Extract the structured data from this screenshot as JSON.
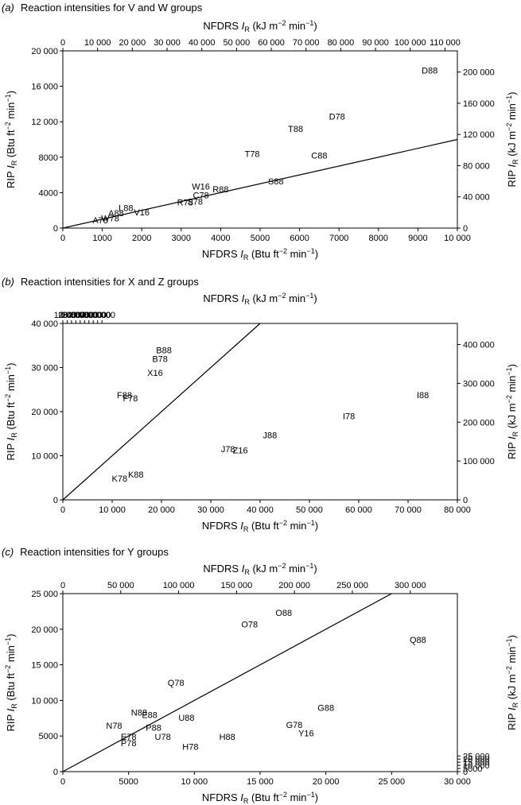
{
  "chart_data": [
    {
      "type": "scatter",
      "title_tag": "(a)",
      "title": "Reaction intensities for V and W groups",
      "xlabel_prefix": "NFDRS ",
      "xlabel_top_unit": " (kJ m−2 min−1)",
      "xlabel_bottom_unit": " (Btu ft−2 min−1)",
      "ylabel_prefix": "RIP ",
      "ylabel_left_unit": " (Btu ft−2 min−1)",
      "ylabel_right_unit": " (kJ m−2 min−1)",
      "xlim": [
        0,
        10000
      ],
      "ylim": [
        0,
        20000
      ],
      "x_ticks": [
        "0",
        "1000",
        "2000",
        "3000",
        "4000",
        "5000",
        "6000",
        "7000",
        "8000",
        "9000",
        "10 000"
      ],
      "y_ticks": [
        "0",
        "4000",
        "8000",
        "12 000",
        "16 000",
        "20 000"
      ],
      "top_ticks": [
        "0",
        "10 000",
        "20 000",
        "30 000",
        "40 000",
        "50 000",
        "60 000",
        "70 000",
        "80 000",
        "90 000",
        "100 000",
        "110 000"
      ],
      "right_ticks": [
        "0",
        "40 000",
        "80 000",
        "120 000",
        "160 000",
        "200 000"
      ],
      "line": [
        [
          0,
          0
        ],
        [
          10000,
          10000
        ]
      ],
      "points": [
        {
          "label": "D88",
          "x": 9300,
          "y": 17800
        },
        {
          "label": "D78",
          "x": 6950,
          "y": 12600
        },
        {
          "label": "T88",
          "x": 5900,
          "y": 11200
        },
        {
          "label": "T78",
          "x": 4800,
          "y": 8400
        },
        {
          "label": "C88",
          "x": 6500,
          "y": 8200
        },
        {
          "label": "S88",
          "x": 5400,
          "y": 5300
        },
        {
          "label": "W16",
          "x": 3500,
          "y": 4700
        },
        {
          "label": "R88",
          "x": 4000,
          "y": 4400
        },
        {
          "label": "C78",
          "x": 3500,
          "y": 3700
        },
        {
          "label": "S78",
          "x": 3350,
          "y": 3000
        },
        {
          "label": "R78",
          "x": 3100,
          "y": 2900
        },
        {
          "label": "L88",
          "x": 1600,
          "y": 2300
        },
        {
          "label": "A88",
          "x": 1350,
          "y": 1700
        },
        {
          "label": "V16",
          "x": 2000,
          "y": 1800
        },
        {
          "label": "W78",
          "x": 1200,
          "y": 1100
        },
        {
          "label": "A78",
          "x": 950,
          "y": 900
        }
      ]
    },
    {
      "type": "scatter",
      "title_tag": "(b)",
      "title": "Reaction intensities for X and Z groups",
      "xlabel_prefix": "NFDRS ",
      "xlabel_top_unit": " (kJ m−2 min−1)",
      "xlabel_bottom_unit": " (Btu ft−2 min−1)",
      "ylabel_prefix": "RIP ",
      "ylabel_left_unit": " (Btu ft−2 min−1)",
      "ylabel_right_unit": " (kJ m−2 min−1)",
      "xlim": [
        0,
        80000
      ],
      "ylim": [
        0,
        40000
      ],
      "x_ticks": [
        "0",
        "10 000",
        "20 000",
        "30 000",
        "40 000",
        "50 000",
        "60 000",
        "70 000",
        "80 000"
      ],
      "y_ticks": [
        "0",
        "10 000",
        "20 000",
        "30 000",
        "40 000"
      ],
      "top_ticks": [
        "0",
        "10 000",
        "20 000",
        "30 000",
        "40 000",
        "50 000",
        "60 000",
        "70 000",
        "80 000",
        "90 000"
      ],
      "right_ticks": [
        "0",
        "100 000",
        "200 000",
        "300 000",
        "400 000"
      ],
      "line": [
        [
          0,
          0
        ],
        [
          40000,
          40000
        ]
      ],
      "points": [
        {
          "label": "B88",
          "x": 20500,
          "y": 34000
        },
        {
          "label": "B78",
          "x": 19700,
          "y": 32000
        },
        {
          "label": "X16",
          "x": 18700,
          "y": 28800
        },
        {
          "label": "F88",
          "x": 12500,
          "y": 23800
        },
        {
          "label": "F78",
          "x": 13700,
          "y": 23100
        },
        {
          "label": "I88",
          "x": 73000,
          "y": 23800
        },
        {
          "label": "I78",
          "x": 58000,
          "y": 19000
        },
        {
          "label": "J88",
          "x": 42000,
          "y": 14700
        },
        {
          "label": "J78",
          "x": 33500,
          "y": 11500
        },
        {
          "label": "Z16",
          "x": 36000,
          "y": 11300
        },
        {
          "label": "K88",
          "x": 14800,
          "y": 5800
        },
        {
          "label": "K78",
          "x": 11500,
          "y": 4900
        }
      ]
    },
    {
      "type": "scatter",
      "title_tag": "(c)",
      "title": "Reaction intensities for Y groups",
      "xlabel_prefix": "NFDRS ",
      "xlabel_top_unit": " (kJ m−2 min−1)",
      "xlabel_bottom_unit": " (Btu ft−2 min−1)",
      "ylabel_prefix": "RIP ",
      "ylabel_left_unit": " (Btu ft−2 min−1)",
      "ylabel_right_unit": " (kJ m−2 min−1)",
      "xlim": [
        0,
        30000
      ],
      "ylim": [
        0,
        25000
      ],
      "x_ticks": [
        "0",
        "5000",
        "10 000",
        "15 000",
        "20 000",
        "25 000",
        "30 000"
      ],
      "y_ticks": [
        "0",
        "5000",
        "10 000",
        "15 000",
        "20 000",
        "25 000"
      ],
      "top_ticks": [
        "0",
        "50 000",
        "100 000",
        "150 000",
        "200 000",
        "250 000",
        "300 000"
      ],
      "right_ticks": [
        "0",
        "5000",
        "10 000",
        "15 000",
        "20 000",
        "25 000"
      ],
      "line": [
        [
          0,
          0
        ],
        [
          25000,
          25000
        ]
      ],
      "points": [
        {
          "label": "O88",
          "x": 16800,
          "y": 22300
        },
        {
          "label": "O78",
          "x": 14200,
          "y": 20700
        },
        {
          "label": "Q88",
          "x": 27000,
          "y": 18500
        },
        {
          "label": "Q78",
          "x": 8600,
          "y": 12500
        },
        {
          "label": "N88",
          "x": 5800,
          "y": 8300
        },
        {
          "label": "G88",
          "x": 20000,
          "y": 9000
        },
        {
          "label": "E88",
          "x": 6600,
          "y": 8000
        },
        {
          "label": "U88",
          "x": 9400,
          "y": 7600
        },
        {
          "label": "N78",
          "x": 3900,
          "y": 6500
        },
        {
          "label": "P88",
          "x": 6900,
          "y": 6200
        },
        {
          "label": "G78",
          "x": 17600,
          "y": 6600
        },
        {
          "label": "Y16",
          "x": 18500,
          "y": 5400
        },
        {
          "label": "E78",
          "x": 5000,
          "y": 4900
        },
        {
          "label": "U78",
          "x": 7600,
          "y": 4900
        },
        {
          "label": "H88",
          "x": 12500,
          "y": 4900
        },
        {
          "label": "P78",
          "x": 5000,
          "y": 4000
        },
        {
          "label": "H78",
          "x": 9700,
          "y": 3500
        }
      ]
    }
  ]
}
